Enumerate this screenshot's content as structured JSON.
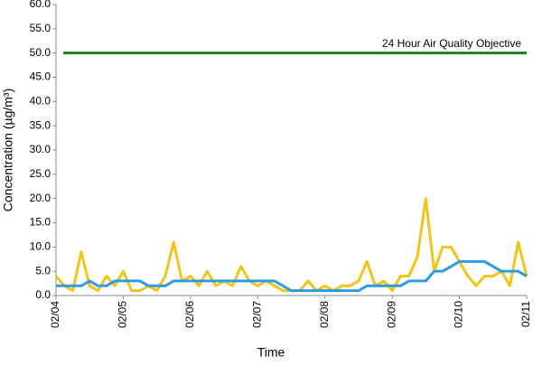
{
  "chart_data": {
    "type": "line",
    "xlabel": "Time",
    "ylabel": "Concentration (µg/m³)",
    "categories": [
      "02/04",
      null,
      null,
      null,
      null,
      null,
      null,
      null,
      "02/05",
      null,
      null,
      null,
      null,
      null,
      null,
      null,
      "02/06",
      null,
      null,
      null,
      null,
      null,
      null,
      null,
      "02/07",
      null,
      null,
      null,
      null,
      null,
      null,
      null,
      "02/08",
      null,
      null,
      null,
      null,
      null,
      null,
      null,
      "02/09",
      null,
      null,
      null,
      null,
      null,
      null,
      null,
      "02/10",
      null,
      null,
      null,
      null,
      null,
      null,
      null,
      "02/11"
    ],
    "series": [
      {
        "color": "#f0c419",
        "values": [
          4,
          2,
          1,
          9,
          2,
          1,
          4,
          2,
          5,
          1,
          1,
          2,
          1,
          4,
          11,
          3,
          4,
          2,
          5,
          2,
          3,
          2,
          6,
          3,
          2,
          3,
          2,
          1,
          1,
          1,
          3,
          1,
          2,
          1,
          2,
          2,
          3,
          7,
          2,
          3,
          1,
          4,
          4,
          8,
          20,
          5,
          10,
          10,
          7,
          4,
          2,
          4,
          4,
          5,
          2,
          11,
          4
        ]
      },
      {
        "color": "#2e9be0",
        "values": [
          2,
          2,
          2,
          2,
          3,
          2,
          2,
          3,
          3,
          3,
          3,
          2,
          2,
          2,
          3,
          3,
          3,
          3,
          3,
          3,
          3,
          3,
          3,
          3,
          3,
          3,
          3,
          2,
          1,
          1,
          1,
          1,
          1,
          1,
          1,
          1,
          1,
          2,
          2,
          2,
          2,
          2,
          3,
          3,
          3,
          5,
          5,
          6,
          7,
          7,
          7,
          7,
          6,
          5,
          5,
          5,
          4
        ]
      }
    ],
    "reference_lines": [
      {
        "value": 50,
        "label": "24 Hour Air Quality Objective",
        "color": "#1e7d1e"
      }
    ],
    "ylim": [
      0,
      60
    ],
    "yticks": [
      {
        "value": 0,
        "label": "0.0"
      },
      {
        "value": 5,
        "label": "5.0"
      },
      {
        "value": 10,
        "label": "10.0"
      },
      {
        "value": 15,
        "label": "15.0"
      },
      {
        "value": 20,
        "label": "20.0"
      },
      {
        "value": 25,
        "label": "25.0"
      },
      {
        "value": 30,
        "label": "30.0"
      },
      {
        "value": 35,
        "label": "35.0"
      },
      {
        "value": 40,
        "label": "40.0"
      },
      {
        "value": 45,
        "label": "45.0"
      },
      {
        "value": 50,
        "label": "50.0"
      },
      {
        "value": 55,
        "label": "55.0"
      },
      {
        "value": 60,
        "label": "60.0"
      }
    ],
    "grid": false
  }
}
